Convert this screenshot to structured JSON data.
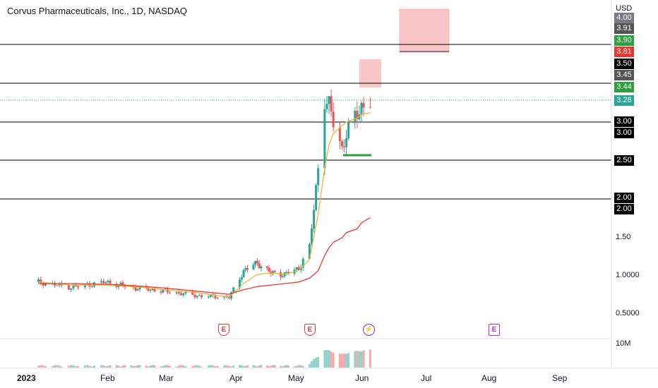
{
  "title": "Corvus Pharmaceuticals, Inc., 1D, NASDAQ",
  "currency": "USD",
  "colors": {
    "up": "#26a69a",
    "down": "#ef5350",
    "ma_fast": "#f2b13a",
    "ma_slow": "#e53935",
    "level_line": "#000000",
    "support": "#2e9e3e",
    "zone": "#f8b4b6"
  },
  "price_labels": [
    {
      "text": "4.00",
      "bg": "#787b86"
    },
    {
      "text": "3.91",
      "bg": "#555555"
    },
    {
      "text": "3.90",
      "bg": "#2e9e3e"
    },
    {
      "text": "3.81",
      "bg": "#e53935"
    },
    {
      "text": "3.50",
      "bg": "#000000"
    },
    {
      "text": "3.45",
      "bg": "#555555"
    },
    {
      "text": "3.44",
      "bg": "#2e9e3e"
    },
    {
      "text": "3.28",
      "bg": "#26a69a"
    },
    {
      "text": "3.00",
      "bg": "#000000"
    },
    {
      "text": "3.00",
      "bg": "#000000"
    },
    {
      "text": "2.50",
      "bg": "#000000"
    },
    {
      "text": "2.00",
      "bg": "#000000"
    },
    {
      "text": "2.00",
      "bg": "#000000"
    }
  ],
  "axis_ticks": [
    "1.50",
    "1.0000",
    "0.5000",
    "10M"
  ],
  "time_labels": [
    "2023",
    "Feb",
    "Mar",
    "Apr",
    "May",
    "Jun",
    "Jul",
    "Aug",
    "Sep"
  ],
  "events": [
    {
      "label": "E",
      "kind": "earnings",
      "color": "#e53935"
    },
    {
      "label": "E",
      "kind": "earnings",
      "color": "#e53935"
    },
    {
      "label": "⚡",
      "kind": "news",
      "color": "#9c27b0"
    },
    {
      "label": "E",
      "kind": "earnings-upcoming",
      "color": "#c026d3"
    }
  ],
  "chart_data": {
    "type": "candlestick",
    "symbol": "Corvus Pharmaceuticals, Inc.",
    "interval": "1D",
    "exchange": "NASDAQ",
    "last_price": 3.28,
    "horizontal_levels": [
      3.5,
      3.0,
      2.5,
      2.0
    ],
    "support_level": 2.55,
    "resistance_zones": [
      [
        3.45,
        3.81
      ],
      [
        3.81,
        4.0
      ]
    ],
    "series": [
      {
        "type": "close",
        "x": [
          "2023-01-03",
          "2023-01-17",
          "2023-02-01",
          "2023-02-15",
          "2023-03-01",
          "2023-03-15",
          "2023-03-29",
          "2023-04-05",
          "2023-04-12",
          "2023-04-19",
          "2023-04-26",
          "2023-05-03",
          "2023-05-08",
          "2023-05-12",
          "2023-05-15",
          "2023-05-17",
          "2023-05-19",
          "2023-05-23",
          "2023-05-25",
          "2023-05-30",
          "2023-06-01",
          "2023-06-05"
        ],
        "values": [
          0.9,
          0.83,
          0.9,
          0.82,
          0.78,
          0.72,
          0.7,
          1.05,
          1.15,
          1.02,
          1.0,
          1.08,
          1.35,
          2.4,
          3.3,
          3.2,
          3.0,
          2.65,
          2.85,
          3.1,
          3.2,
          3.28
        ]
      },
      {
        "type": "ma_fast",
        "values": [
          0.9,
          0.86,
          0.86,
          0.84,
          0.8,
          0.76,
          0.7,
          0.88,
          1.0,
          1.02,
          1.0,
          1.05,
          1.2,
          1.8,
          2.4,
          2.7,
          2.85,
          2.95,
          3.0,
          3.05,
          3.1,
          3.12
        ]
      },
      {
        "type": "ma_slow",
        "values": [
          0.88,
          0.88,
          0.87,
          0.85,
          0.82,
          0.78,
          0.74,
          0.8,
          0.84,
          0.86,
          0.88,
          0.9,
          0.95,
          1.05,
          1.25,
          1.35,
          1.42,
          1.48,
          1.55,
          1.6,
          1.68,
          1.75
        ]
      }
    ]
  }
}
